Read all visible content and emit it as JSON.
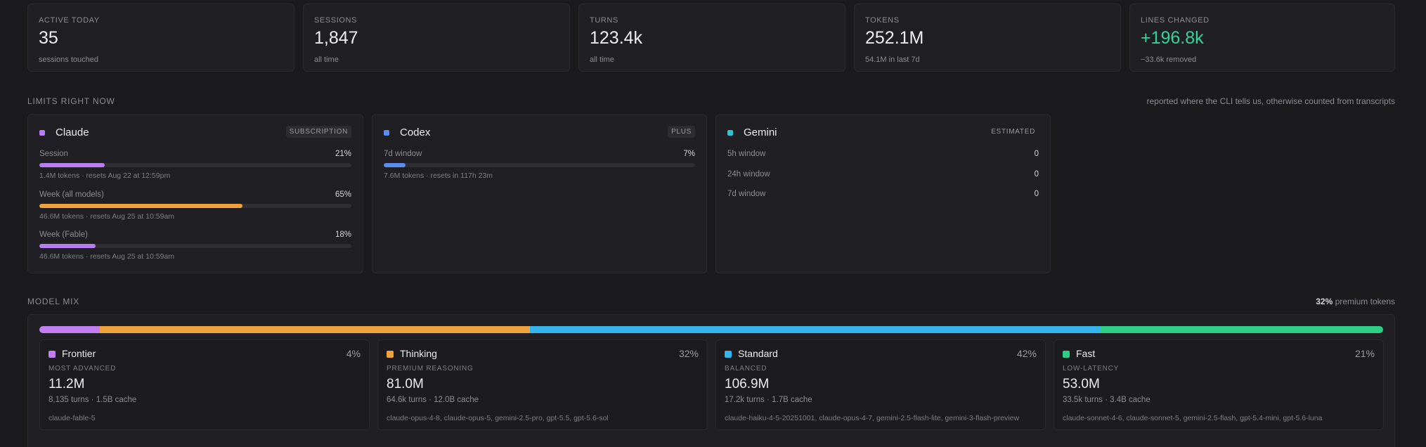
{
  "stats": [
    {
      "label": "ACTIVE TODAY",
      "value": "35",
      "sub": "sessions touched"
    },
    {
      "label": "SESSIONS",
      "value": "1,847",
      "sub": "all time"
    },
    {
      "label": "TURNS",
      "value": "123.4k",
      "sub": "all time"
    },
    {
      "label": "TOKENS",
      "value": "252.1M",
      "sub": "54.1M in last 7d"
    },
    {
      "label": "LINES CHANGED",
      "value": "+196.8k",
      "sub": "−33.6k removed"
    }
  ],
  "colors": {
    "claude": "#b87df0",
    "codex": "#5b8def",
    "gemini": "#2dc5d6",
    "frontier": "#c07ef0",
    "thinking": "#f0a33a",
    "standard": "#34b5ec",
    "fast": "#2ecf85",
    "positive": "#34d399"
  },
  "limits": {
    "title": "LIMITS RIGHT NOW",
    "note": "reported where the CLI tells us, otherwise counted from transcripts",
    "claude": {
      "name": "Claude",
      "tag": "SUBSCRIPTION",
      "rows": [
        {
          "label": "Session",
          "pct": "21%",
          "level": 0.21,
          "sub": "1.4M tokens · resets Aug 22 at 12:59pm"
        },
        {
          "label": "Week (all models)",
          "pct": "65%",
          "level": 0.65,
          "sub": "46.6M tokens · resets Aug 25 at 10:59am"
        },
        {
          "label": "Week (Fable)",
          "pct": "18%",
          "level": 0.18,
          "sub": "46.6M tokens · resets Aug 25 at 10:59am"
        }
      ]
    },
    "codex": {
      "name": "Codex",
      "tag": "PLUS",
      "rows": [
        {
          "label": "7d window",
          "pct": "7%",
          "level": 0.07,
          "sub": "7.6M tokens · resets in 117h 23m"
        }
      ]
    },
    "gemini": {
      "name": "Gemini",
      "tag": "ESTIMATED",
      "rows": [
        {
          "label": "5h window",
          "value": "0"
        },
        {
          "label": "24h window",
          "value": "0"
        },
        {
          "label": "7d window",
          "value": "0"
        }
      ]
    }
  },
  "mix": {
    "title": "MODEL MIX",
    "premium_pct": "32%",
    "premium_label": "premium tokens",
    "shares": [
      0.045,
      0.32,
      0.425,
      0.21
    ],
    "tiers": [
      {
        "name": "Frontier",
        "pct": "4%",
        "sub": "MOST ADVANCED",
        "value": "11.2M",
        "detail": "8,135 turns · 1.5B cache",
        "models": "claude-fable-5"
      },
      {
        "name": "Thinking",
        "pct": "32%",
        "sub": "PREMIUM REASONING",
        "value": "81.0M",
        "detail": "64.6k turns · 12.0B cache",
        "models": "claude-opus-4-8, claude-opus-5, gemini-2.5-pro, gpt-5.5, gpt-5.6-sol"
      },
      {
        "name": "Standard",
        "pct": "42%",
        "sub": "BALANCED",
        "value": "106.9M",
        "detail": "17.2k turns · 1.7B cache",
        "models": "claude-haiku-4-5-20251001, claude-opus-4-7, gemini-2.5-flash-lite, gemini-3-flash-preview"
      },
      {
        "name": "Fast",
        "pct": "21%",
        "sub": "LOW-LATENCY",
        "value": "53.0M",
        "detail": "33.5k turns · 3.4B cache",
        "models": "claude-sonnet-4-6, claude-sonnet-5, gemini-2.5-flash, gpt-5.4-mini, gpt-5.6-luna"
      }
    ]
  }
}
